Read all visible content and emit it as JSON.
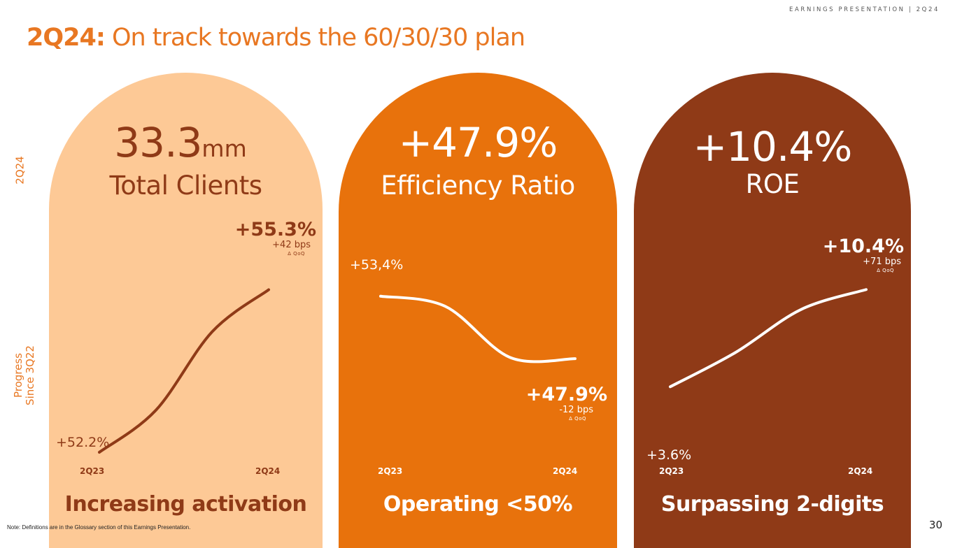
{
  "header": {
    "tag": "EARNINGS PRESENTATION | 2Q24",
    "title_bold": "2Q24:",
    "title_rest": " On track towards the 60/30/30 plan"
  },
  "side_labels": {
    "period": "2Q24",
    "progress_line1": "Progress",
    "progress_line2": "Since 3Q22"
  },
  "colors": {
    "accent": "#e87722",
    "light_peach": "#fdc996",
    "orange": "#e8720c",
    "brown": "#8f3a17",
    "white": "#ffffff"
  },
  "chart_data": [
    {
      "type": "line",
      "title": "Total Clients",
      "headline_value": "33.3",
      "headline_unit": "mm",
      "footer": "Increasing activation",
      "x": [
        "2Q23",
        "2Q24"
      ],
      "start_label": "+52.2%",
      "end_label": "+55.3%",
      "end_delta": "+42 bps",
      "end_delta_caption": "Δ QoQ",
      "series": [
        {
          "name": "Progress since 3Q22",
          "values": [
            52.2,
            53.0,
            54.5,
            55.3
          ]
        }
      ],
      "ylim": [
        52.0,
        55.6
      ]
    },
    {
      "type": "line",
      "title": "Efficiency Ratio",
      "headline_value": "+47.9%",
      "headline_unit": "",
      "footer": "Operating <50%",
      "x": [
        "2Q23",
        "2Q24"
      ],
      "start_label": "+53,4%",
      "end_label": "+47.9%",
      "end_delta": "-12 bps",
      "end_delta_caption": "Δ QoQ",
      "series": [
        {
          "name": "Progress since 3Q22",
          "values": [
            53.4,
            52.5,
            48.0,
            47.9
          ]
        }
      ],
      "ylim": [
        46.0,
        54.0
      ]
    },
    {
      "type": "line",
      "title": "ROE",
      "headline_value": "+10.4%",
      "headline_unit": "",
      "footer": "Surpassing 2-digits",
      "x": [
        "2Q23",
        "2Q24"
      ],
      "start_label": "+3.6%",
      "end_label": "+10.4%",
      "end_delta": "+71 bps",
      "end_delta_caption": "Δ QoQ",
      "series": [
        {
          "name": "Progress since 3Q22",
          "values": [
            3.6,
            6.0,
            9.0,
            10.4
          ]
        }
      ],
      "ylim": [
        2.0,
        11.0
      ]
    }
  ],
  "footnote": "Note: Definitions are in the Glossary section of this Earnings Presentation.",
  "page_number": "30"
}
